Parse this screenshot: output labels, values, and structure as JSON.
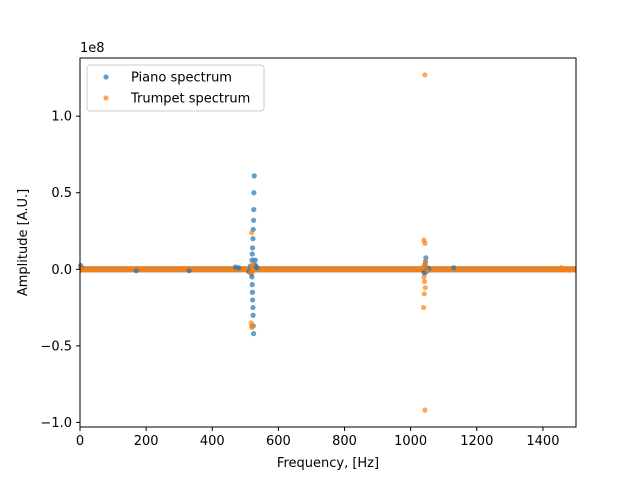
{
  "chart_data": {
    "type": "scatter",
    "title": "",
    "xlabel": "Frequency, [Hz]",
    "ylabel": "Amplitude [A.U.]",
    "y_offset_label": "1e8",
    "xlim": [
      0,
      1500
    ],
    "ylim": [
      -1.03,
      1.38
    ],
    "x_ticks": [
      0,
      200,
      400,
      600,
      800,
      1000,
      1200,
      1400
    ],
    "x_tick_labels": [
      "0",
      "200",
      "400",
      "600",
      "800",
      "1000",
      "1200",
      "1400"
    ],
    "y_ticks": [
      -1.0,
      -0.5,
      0.0,
      0.5,
      1.0
    ],
    "y_tick_labels": [
      "−1.0",
      "−0.5",
      "0.0",
      "0.5",
      "1.0"
    ],
    "grid": false,
    "legend_position": "top-left",
    "series": [
      {
        "name": "Piano spectrum",
        "color": "#1f77b4",
        "points": [
          [
            520,
            0.06
          ],
          [
            521,
            0.1
          ],
          [
            522,
            0.14
          ],
          [
            523,
            0.2
          ],
          [
            524,
            0.26
          ],
          [
            525,
            0.32
          ],
          [
            525.5,
            0.39
          ],
          [
            526,
            0.5
          ],
          [
            527,
            0.61
          ],
          [
            520,
            -0.05
          ],
          [
            521,
            -0.1
          ],
          [
            521.5,
            -0.15
          ],
          [
            522,
            -0.2
          ],
          [
            523,
            -0.25
          ],
          [
            523.5,
            -0.3
          ],
          [
            524,
            -0.37
          ],
          [
            525,
            -0.42
          ],
          [
            515,
            0.02
          ],
          [
            518,
            -0.03
          ],
          [
            528,
            0.03
          ],
          [
            530,
            0.06
          ],
          [
            532,
            0.02
          ],
          [
            535,
            0.01
          ],
          [
            510,
            -0.015
          ],
          [
            1043,
            0.03
          ],
          [
            1045,
            0.05
          ],
          [
            1046,
            0.075
          ],
          [
            1040,
            -0.02
          ],
          [
            1043,
            -0.025
          ],
          [
            1048,
            0.01
          ],
          [
            1050,
            -0.01
          ],
          [
            1055,
            0.005
          ],
          [
            2,
            0.025
          ],
          [
            5,
            0.01
          ],
          [
            170,
            -0.01
          ],
          [
            330,
            -0.01
          ],
          [
            470,
            0.015
          ],
          [
            480,
            0.01
          ],
          [
            1130,
            0.01
          ]
        ]
      },
      {
        "name": "Trumpet spectrum",
        "color": "#ff7f0e",
        "points": [
          [
            519,
            0.24
          ],
          [
            520,
            0.02
          ],
          [
            521,
            0.03
          ],
          [
            518,
            -0.35
          ],
          [
            519,
            -0.37
          ],
          [
            520,
            -0.38
          ],
          [
            517,
            -0.02
          ],
          [
            522,
            -0.015
          ],
          [
            1043,
            1.27
          ],
          [
            1040,
            0.19
          ],
          [
            1043,
            0.17
          ],
          [
            1045,
            0.05
          ],
          [
            1046,
            0.02
          ],
          [
            1040,
            -0.05
          ],
          [
            1042,
            -0.08
          ],
          [
            1044,
            -0.12
          ],
          [
            1041,
            -0.16
          ],
          [
            1039,
            -0.25
          ],
          [
            1043,
            -0.92
          ],
          [
            1035,
            0.01
          ],
          [
            1050,
            -0.01
          ],
          [
            3,
            0.01
          ],
          [
            8,
            -0.005
          ],
          [
            1455,
            0.01
          ],
          [
            1480,
            -0.005
          ]
        ]
      }
    ]
  }
}
